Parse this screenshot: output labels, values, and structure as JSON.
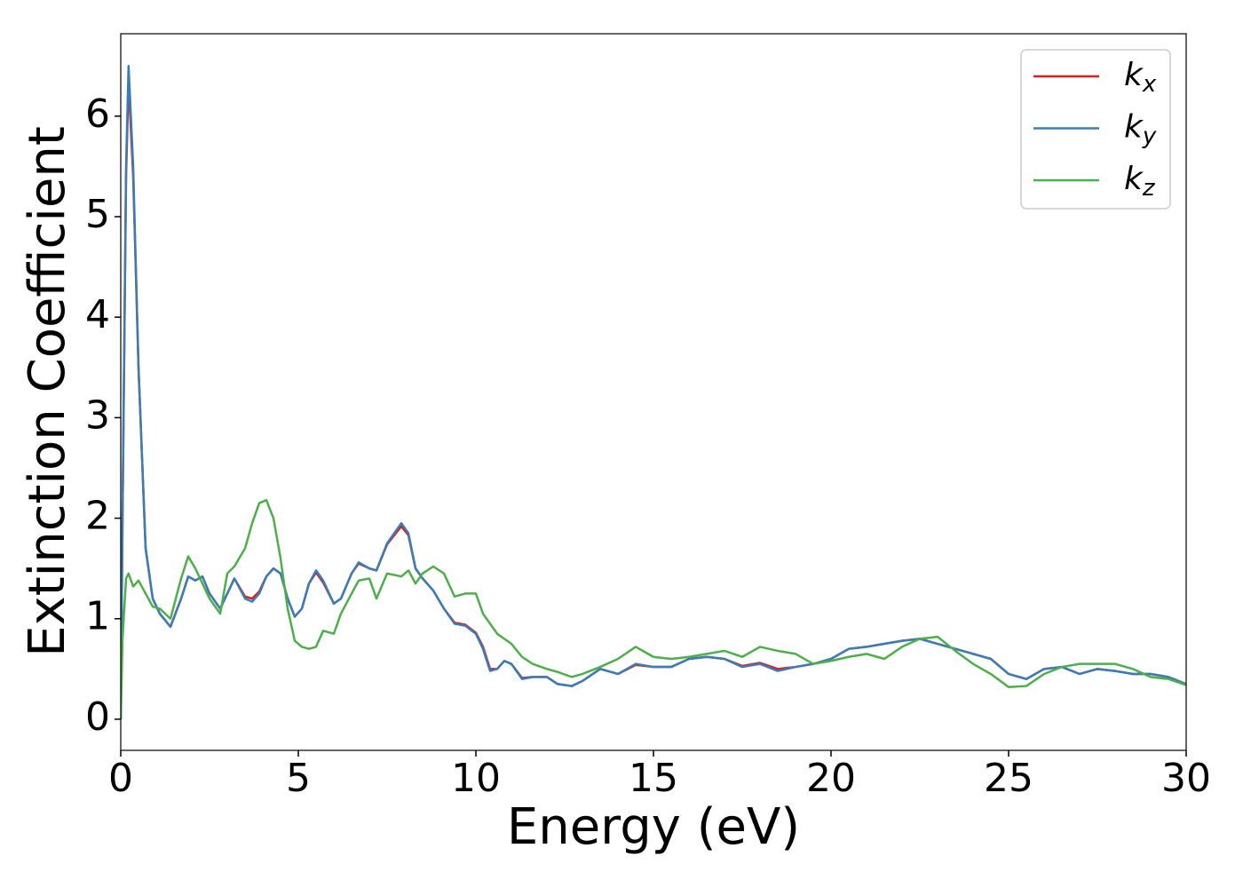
{
  "chart_data": {
    "type": "line",
    "xlabel": "Energy (eV)",
    "ylabel": "Extinction Coefficient",
    "xlim": [
      0,
      30
    ],
    "xticks": [
      0,
      5,
      10,
      15,
      20,
      25,
      30
    ],
    "ylim": [
      -0.31,
      6.82
    ],
    "yticks": [
      0,
      1,
      2,
      3,
      4,
      5,
      6
    ],
    "grid": false,
    "legend": "upper right",
    "x": [
      0,
      0.05,
      0.15,
      0.22,
      0.35,
      0.5,
      0.7,
      0.9,
      1.1,
      1.4,
      1.7,
      1.9,
      2.1,
      2.3,
      2.5,
      2.8,
      3.0,
      3.2,
      3.5,
      3.7,
      3.9,
      4.1,
      4.3,
      4.5,
      4.7,
      4.9,
      5.1,
      5.3,
      5.5,
      5.7,
      6.0,
      6.2,
      6.5,
      6.7,
      7.0,
      7.2,
      7.5,
      7.9,
      8.1,
      8.3,
      8.5,
      8.8,
      9.1,
      9.4,
      9.7,
      10.0,
      10.2,
      10.4,
      10.6,
      10.8,
      11.0,
      11.3,
      11.6,
      12.0,
      12.3,
      12.7,
      13.0,
      13.5,
      14.0,
      14.5,
      15.0,
      15.5,
      16.0,
      16.5,
      17.0,
      17.5,
      18.0,
      18.5,
      19.0,
      19.5,
      20.0,
      20.5,
      21.0,
      21.5,
      22.0,
      22.5,
      23.0,
      23.5,
      24.0,
      24.5,
      25.0,
      25.5,
      26.0,
      26.5,
      27.0,
      27.5,
      28.0,
      28.5,
      29.0,
      29.5,
      30.0
    ],
    "series": [
      {
        "name": "kx",
        "color": "#e41a1c",
        "values": [
          0,
          2.0,
          5.4,
          6.35,
          5.4,
          3.5,
          1.7,
          1.2,
          1.05,
          0.92,
          1.2,
          1.42,
          1.38,
          1.42,
          1.25,
          1.1,
          1.25,
          1.4,
          1.22,
          1.2,
          1.27,
          1.42,
          1.5,
          1.45,
          1.2,
          1.02,
          1.1,
          1.35,
          1.46,
          1.36,
          1.15,
          1.2,
          1.45,
          1.55,
          1.5,
          1.48,
          1.74,
          1.92,
          1.83,
          1.5,
          1.4,
          1.28,
          1.1,
          0.96,
          0.94,
          0.86,
          0.72,
          0.5,
          0.5,
          0.58,
          0.55,
          0.41,
          0.42,
          0.42,
          0.35,
          0.33,
          0.38,
          0.5,
          0.45,
          0.54,
          0.52,
          0.52,
          0.6,
          0.62,
          0.6,
          0.53,
          0.56,
          0.5,
          0.52,
          0.55,
          0.6,
          0.7,
          0.72,
          0.75,
          0.78,
          0.8,
          0.75,
          0.7,
          0.65,
          0.6,
          0.45,
          0.4,
          0.5,
          0.52,
          0.45,
          0.5,
          0.48,
          0.45,
          0.45,
          0.42,
          0.35
        ]
      },
      {
        "name": "ky",
        "color": "#377eb8",
        "values": [
          0,
          2.0,
          5.5,
          6.5,
          5.5,
          3.5,
          1.7,
          1.2,
          1.05,
          0.92,
          1.2,
          1.42,
          1.38,
          1.42,
          1.25,
          1.1,
          1.25,
          1.4,
          1.2,
          1.17,
          1.25,
          1.42,
          1.5,
          1.45,
          1.2,
          1.02,
          1.1,
          1.35,
          1.48,
          1.38,
          1.15,
          1.2,
          1.45,
          1.56,
          1.5,
          1.48,
          1.75,
          1.95,
          1.85,
          1.5,
          1.4,
          1.28,
          1.1,
          0.95,
          0.93,
          0.85,
          0.7,
          0.48,
          0.5,
          0.58,
          0.55,
          0.4,
          0.42,
          0.42,
          0.35,
          0.33,
          0.38,
          0.5,
          0.45,
          0.55,
          0.52,
          0.52,
          0.6,
          0.62,
          0.6,
          0.52,
          0.55,
          0.48,
          0.52,
          0.55,
          0.6,
          0.7,
          0.72,
          0.75,
          0.78,
          0.8,
          0.75,
          0.7,
          0.65,
          0.6,
          0.45,
          0.4,
          0.5,
          0.52,
          0.45,
          0.5,
          0.48,
          0.45,
          0.45,
          0.42,
          0.35
        ]
      },
      {
        "name": "kz",
        "color": "#4daf4a",
        "values": [
          0,
          0.8,
          1.4,
          1.45,
          1.32,
          1.38,
          1.25,
          1.12,
          1.1,
          1.0,
          1.4,
          1.62,
          1.5,
          1.35,
          1.2,
          1.05,
          1.45,
          1.52,
          1.7,
          1.95,
          2.15,
          2.18,
          2.0,
          1.6,
          1.1,
          0.78,
          0.72,
          0.7,
          0.72,
          0.88,
          0.85,
          1.05,
          1.25,
          1.38,
          1.4,
          1.2,
          1.45,
          1.42,
          1.48,
          1.35,
          1.45,
          1.52,
          1.45,
          1.22,
          1.25,
          1.25,
          1.05,
          0.95,
          0.85,
          0.8,
          0.75,
          0.62,
          0.55,
          0.5,
          0.47,
          0.42,
          0.45,
          0.52,
          0.6,
          0.72,
          0.62,
          0.6,
          0.62,
          0.65,
          0.68,
          0.62,
          0.72,
          0.68,
          0.65,
          0.55,
          0.58,
          0.62,
          0.65,
          0.6,
          0.72,
          0.8,
          0.82,
          0.68,
          0.55,
          0.45,
          0.32,
          0.33,
          0.45,
          0.52,
          0.55,
          0.55,
          0.55,
          0.5,
          0.42,
          0.4,
          0.34
        ]
      }
    ]
  }
}
